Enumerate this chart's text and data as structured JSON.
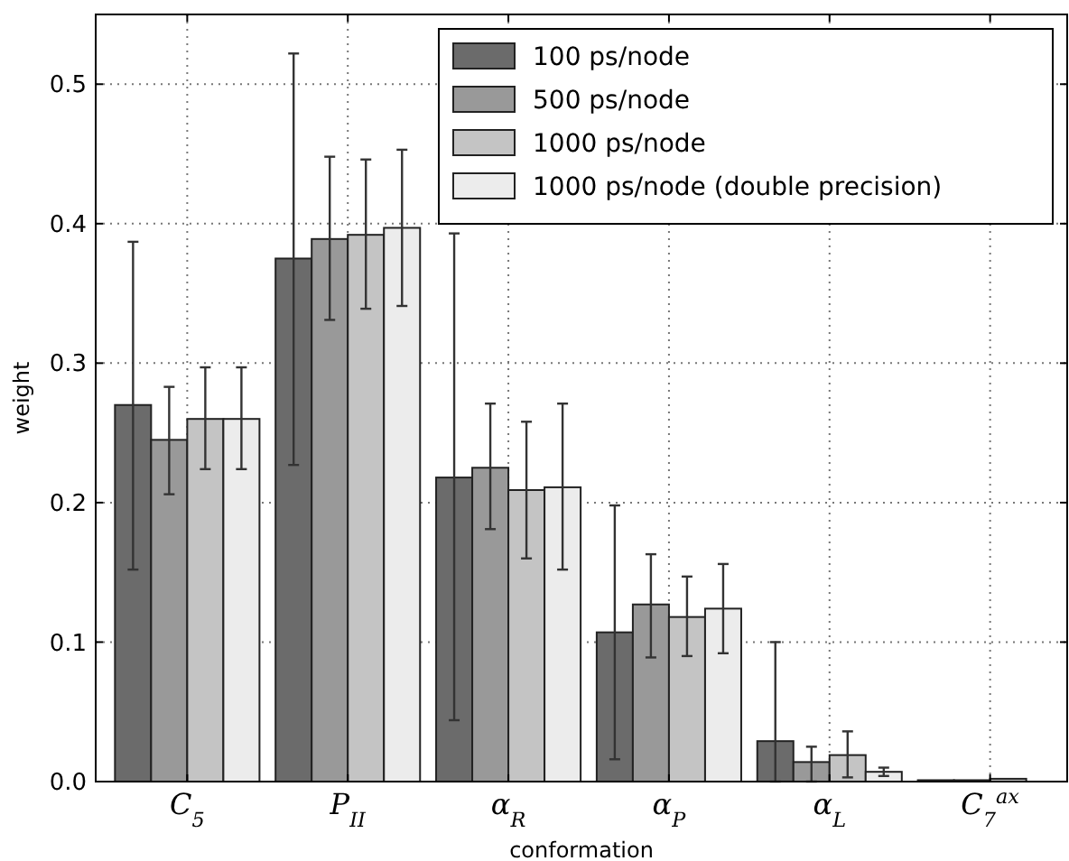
{
  "chart_data": {
    "type": "bar",
    "xlabel": "conformation",
    "ylabel": "weight",
    "categories": [
      "C$_{5}$",
      "P$_{II}$",
      "α$_{R}$",
      "α$_{P}$",
      "α$_{L}$",
      "C$_{7}$$^{ax}$"
    ],
    "series": [
      {
        "name": "100 ps/node",
        "color": "#6b6b6b",
        "values": [
          0.27,
          0.375,
          0.218,
          0.107,
          0.029,
          0.001
        ],
        "errors": [
          [
            0.152,
            0.387
          ],
          [
            0.227,
            0.522
          ],
          [
            0.044,
            0.393
          ],
          [
            0.016,
            0.198
          ],
          [
            0.0,
            0.1
          ],
          null
        ]
      },
      {
        "name": "500 ps/node",
        "color": "#999999",
        "values": [
          0.245,
          0.389,
          0.225,
          0.127,
          0.014,
          0.001
        ],
        "errors": [
          [
            0.206,
            0.283
          ],
          [
            0.331,
            0.448
          ],
          [
            0.181,
            0.271
          ],
          [
            0.089,
            0.163
          ],
          [
            0.0,
            0.025
          ],
          null
        ]
      },
      {
        "name": "1000 ps/node",
        "color": "#c4c4c4",
        "values": [
          0.26,
          0.392,
          0.209,
          0.118,
          0.019,
          0.002
        ],
        "errors": [
          [
            0.224,
            0.297
          ],
          [
            0.339,
            0.446
          ],
          [
            0.16,
            0.258
          ],
          [
            0.09,
            0.147
          ],
          [
            0.003,
            0.036
          ],
          null
        ]
      },
      {
        "name": "1000 ps/node (double precision)",
        "color": "#ececec",
        "values": [
          0.26,
          0.397,
          0.211,
          0.124,
          0.007,
          null
        ],
        "errors": [
          [
            0.224,
            0.297
          ],
          [
            0.341,
            0.453
          ],
          [
            0.152,
            0.271
          ],
          [
            0.092,
            0.156
          ],
          [
            0.004,
            0.01
          ],
          null
        ]
      }
    ],
    "ylim": [
      0,
      0.55
    ],
    "yticks": [
      {
        "value": 0,
        "label": "0.0"
      },
      0.1,
      0.2,
      0.3,
      0.4,
      0.5
    ],
    "grid": true,
    "legend": "top right"
  }
}
